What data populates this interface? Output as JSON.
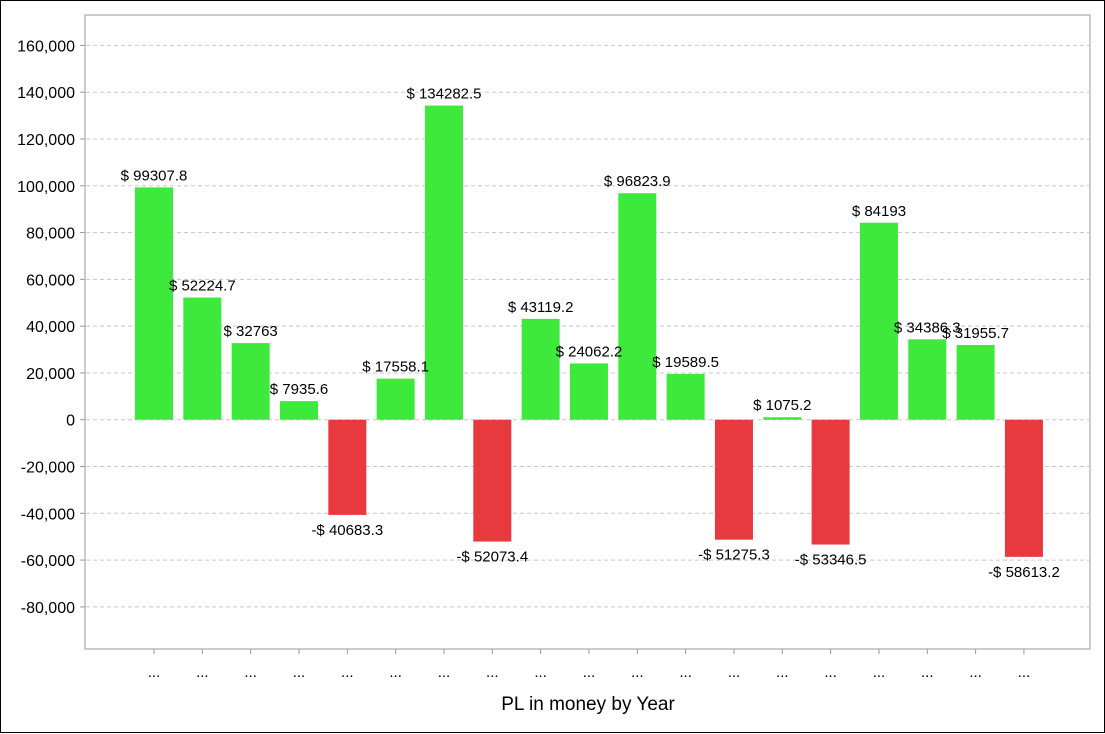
{
  "chart_data": {
    "type": "bar",
    "title": "",
    "xlabel": "PL in money by Year",
    "ylabel": "",
    "categories": [
      "...",
      "...",
      "...",
      "...",
      "...",
      "...",
      "...",
      "...",
      "...",
      "...",
      "...",
      "...",
      "...",
      "...",
      "...",
      "...",
      "...",
      "...",
      "..."
    ],
    "values": [
      99307.8,
      52224.7,
      32763,
      7935.6,
      -40683.3,
      17558.1,
      134282.5,
      -52073.4,
      43119.2,
      24062.2,
      96823.9,
      19589.5,
      -51275.3,
      1075.2,
      -53346.5,
      84193,
      34386.3,
      31955.7,
      -58613.2
    ],
    "data_labels": [
      "$ 99307.8",
      "$ 52224.7",
      "$ 32763",
      "$ 7935.6",
      "-$ 40683.3",
      "$ 17558.1",
      "$ 134282.5",
      "-$ 52073.4",
      "$ 43119.2",
      "$ 24062.2",
      "$ 96823.9",
      "$ 19589.5",
      "-$ 51275.3",
      "$ 1075.2",
      "-$ 53346.5",
      "$ 84193",
      "$ 34386.3",
      "$ 31955.7",
      "-$ 58613.2"
    ],
    "y_ticks": [
      "160,000",
      "140,000",
      "120,000",
      "100,000",
      "80,000",
      "60,000",
      "40,000",
      "20,000",
      "0",
      "-20,000",
      "-40,000",
      "-60,000",
      "-80,000"
    ],
    "y_tick_values": [
      160000,
      140000,
      120000,
      100000,
      80000,
      60000,
      40000,
      20000,
      0,
      -20000,
      -40000,
      -60000,
      -80000
    ],
    "ylim": [
      -98000,
      173000
    ],
    "grid": true,
    "legend": "none",
    "colors": {
      "positive": "#3de93a",
      "negative": "#e8393f",
      "grid": "#c8c8c8",
      "axis": "#999999"
    }
  }
}
